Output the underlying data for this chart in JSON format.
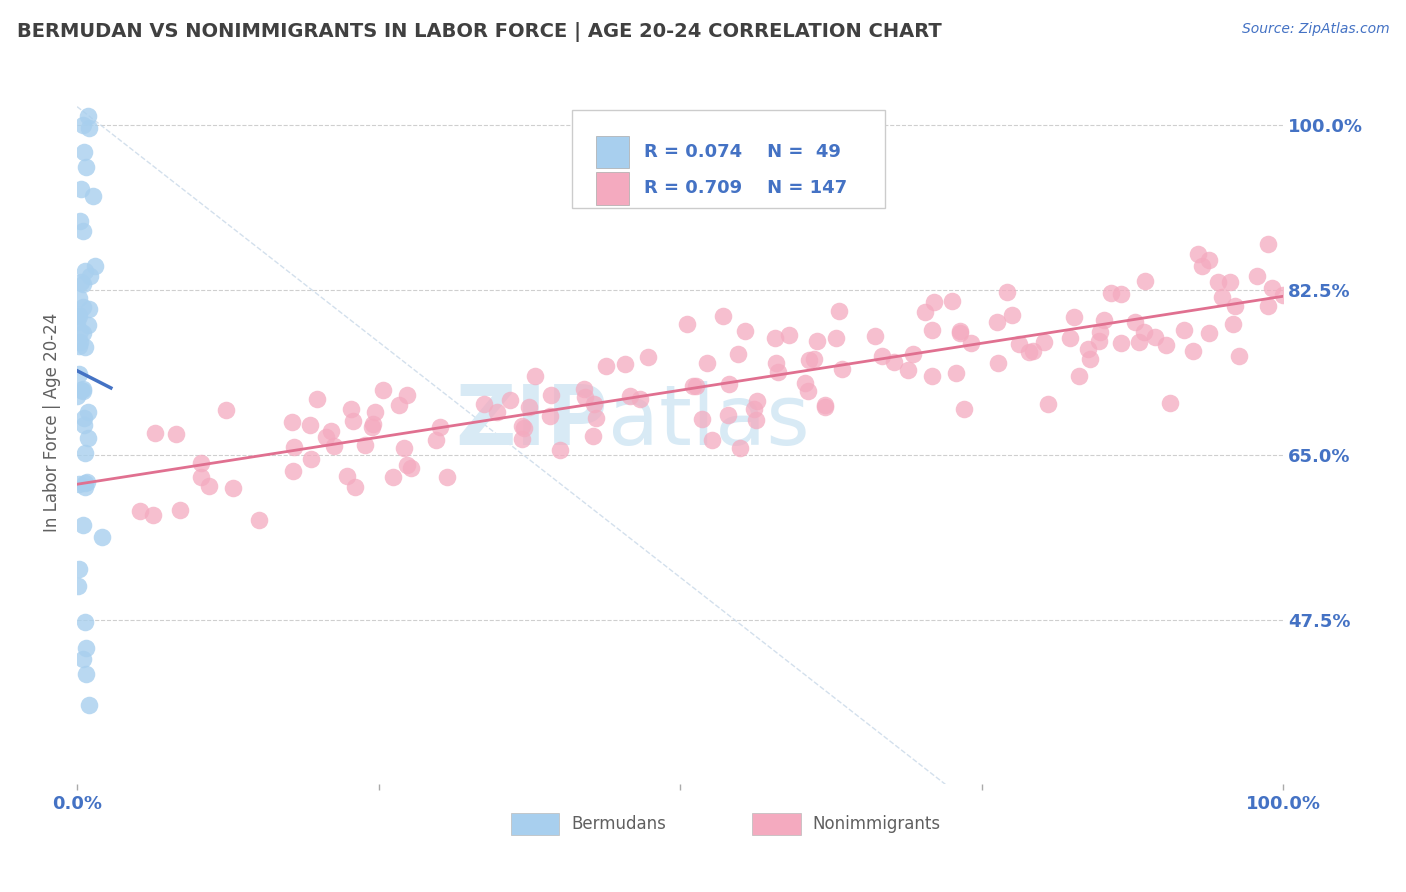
{
  "title": "BERMUDAN VS NONIMMIGRANTS IN LABOR FORCE | AGE 20-24 CORRELATION CHART",
  "source_text": "Source: ZipAtlas.com",
  "ylabel": "In Labor Force | Age 20-24",
  "xlim": [
    0.0,
    1.0
  ],
  "ylim": [
    0.3,
    1.07
  ],
  "yticks": [
    0.475,
    0.65,
    0.825,
    1.0
  ],
  "ytick_labels": [
    "47.5%",
    "65.0%",
    "82.5%",
    "100.0%"
  ],
  "blue_R": 0.074,
  "blue_N": 49,
  "pink_R": 0.709,
  "pink_N": 147,
  "blue_color": "#A8CFEE",
  "pink_color": "#F4AABF",
  "blue_edge_color": "#6AAAD4",
  "pink_edge_color": "#E07090",
  "blue_line_color": "#4472C4",
  "pink_line_color": "#E07090",
  "diag_color": "#C8D8E8",
  "legend_label_blue": "Bermudans",
  "legend_label_pink": "Nonimmigrants",
  "title_color": "#404040",
  "axis_label_color": "#606060",
  "tick_color": "#4472C4",
  "grid_color": "#BBBBBB",
  "background_color": "#FFFFFF",
  "watermark_color": "#D8EAF5"
}
